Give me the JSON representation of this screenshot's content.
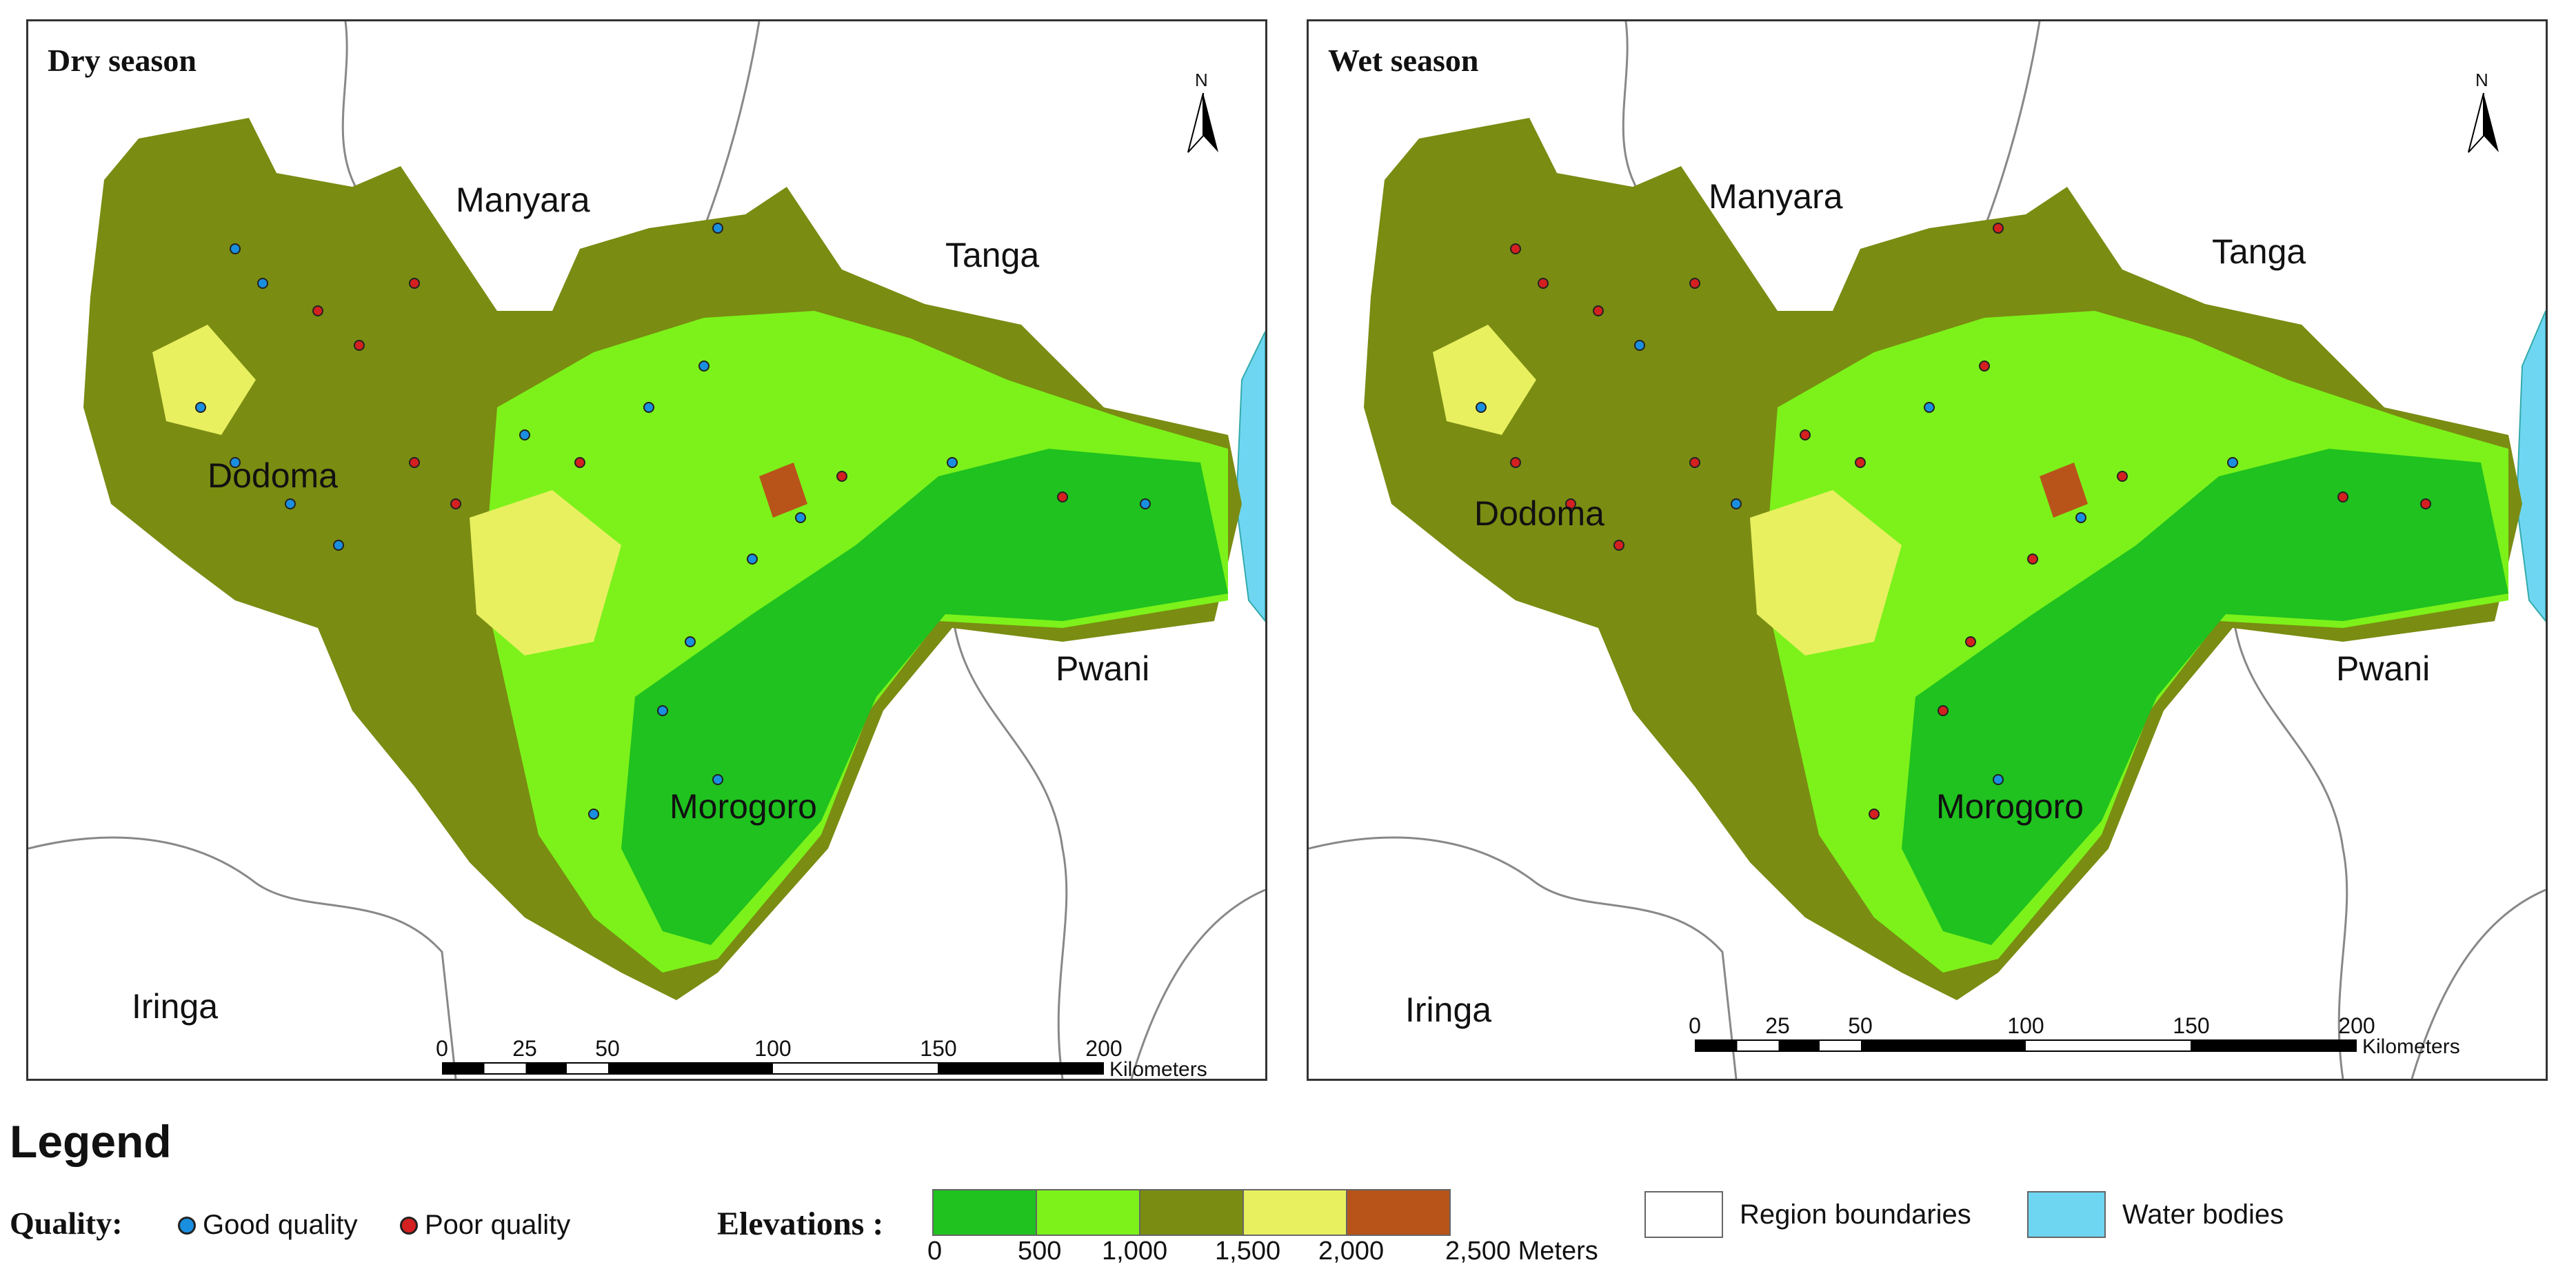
{
  "panels": [
    {
      "title": "Dry season",
      "regions": {
        "manyara": "Manyara",
        "tanga": "Tanga",
        "dodoma": "Dodoma",
        "pwani": "Pwani",
        "morogoro": "Morogoro",
        "iringa": "Iringa"
      },
      "north_label": "N",
      "scale": {
        "ticks": [
          "0",
          "25",
          "50",
          "100",
          "150",
          "200"
        ],
        "unit": "Kilometers"
      }
    },
    {
      "title": "Wet season",
      "regions": {
        "manyara": "Manyara",
        "tanga": "Tanga",
        "dodoma": "Dodoma",
        "pwani": "Pwani",
        "morogoro": "Morogoro",
        "iringa": "Iringa"
      },
      "north_label": "N",
      "scale": {
        "ticks": [
          "0",
          "25",
          "50",
          "100",
          "150",
          "200"
        ],
        "unit": "Kilometers"
      }
    }
  ],
  "legend": {
    "title": "Legend",
    "quality_label": "Quality:",
    "good_label": "Good quality",
    "poor_label": "Poor quality",
    "good_color": "#1a8fe0",
    "poor_color": "#d42020",
    "elevations_label": "Elevations :",
    "elevation_ticks": [
      "0",
      "500",
      "1,000",
      "1,500",
      "2,000",
      "2,500 Meters"
    ],
    "elevation_colors": [
      "#1fc21f",
      "#7cf21a",
      "#7a8c12",
      "#e8f060",
      "#b8541a"
    ],
    "region_boundaries_label": "Region boundaries",
    "water_bodies_label": "Water bodies",
    "water_color": "#6fd6f2"
  }
}
